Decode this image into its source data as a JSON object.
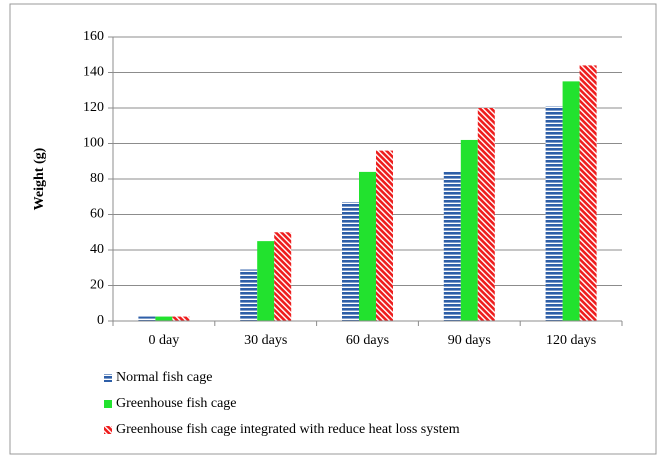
{
  "chart_data": {
    "type": "bar",
    "y_label": "Weight (g)",
    "categories": [
      "0 day",
      "30 days",
      "60 days",
      "90 days",
      "120 days"
    ],
    "series": [
      {
        "name": "Normal fish cage",
        "color": "#2e5fa8",
        "hatch": "horizontal",
        "values": [
          2.5,
          29,
          67,
          84,
          121
        ]
      },
      {
        "name": "Greenhouse fish cage",
        "color": "#22e22e",
        "hatch": "none",
        "values": [
          2.5,
          45,
          84,
          102,
          135
        ]
      },
      {
        "name": "Greenhouse fish cage integrated with reduce heat loss system",
        "color": "#ee1c1c",
        "hatch": "diagonal",
        "values": [
          2.5,
          50,
          96,
          120,
          144
        ]
      }
    ],
    "ylim": [
      0,
      160
    ],
    "yticks": [
      0,
      20,
      40,
      60,
      80,
      100,
      120,
      140,
      160
    ],
    "grid": true
  }
}
